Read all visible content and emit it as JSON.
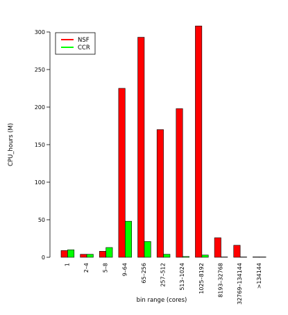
{
  "chart_data": {
    "type": "bar",
    "categories": [
      "1",
      "2–4",
      "5–8",
      "9–64",
      "65–256",
      "257–512",
      "513–1024",
      "1025–8192",
      "8193–32768",
      "32769–134144",
      ">134144"
    ],
    "series": [
      {
        "name": "NSF",
        "color": "#ff0000",
        "values": [
          9,
          4,
          8,
          225,
          293,
          170,
          198,
          308,
          26,
          16,
          0.5
        ]
      },
      {
        "name": "CCR",
        "color": "#00ff00",
        "values": [
          10,
          4,
          13,
          48,
          21,
          4,
          1,
          3,
          0.3,
          0.2,
          0
        ]
      }
    ],
    "title": "",
    "xlabel": "bin range (cores)",
    "ylabel": "CPU_hours (M)",
    "ylim": [
      0,
      300
    ],
    "yticks": [
      0,
      50,
      100,
      150,
      200,
      250,
      300
    ],
    "grid": false,
    "legend": "top-left"
  }
}
